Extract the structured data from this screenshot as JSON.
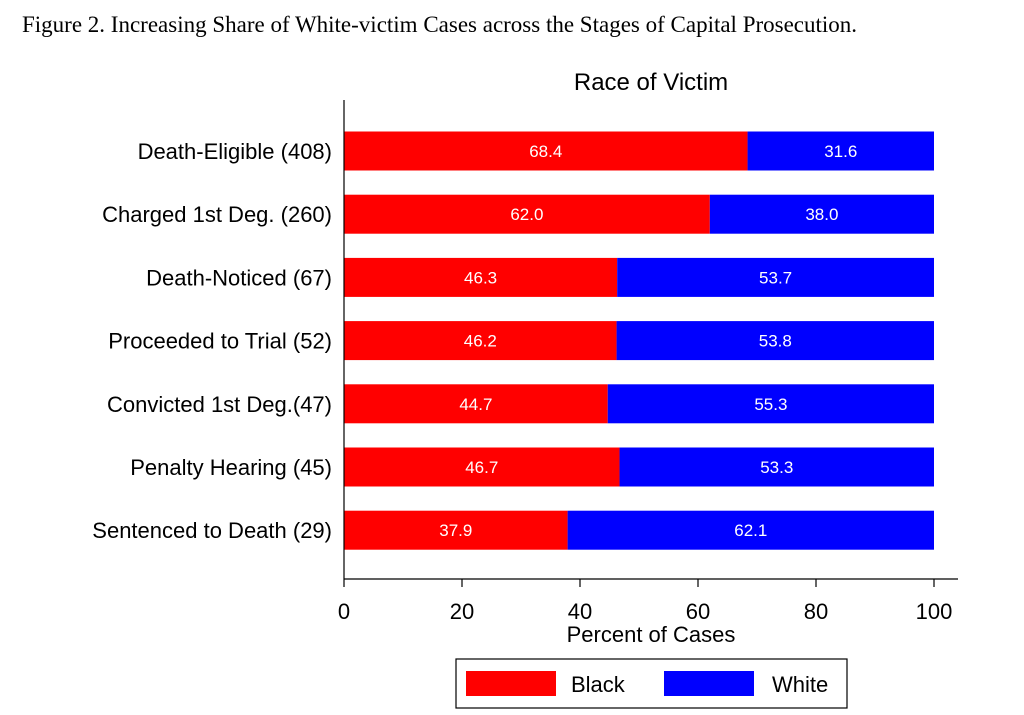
{
  "figure_title": "Figure 2. Increasing Share of White-victim Cases across the Stages of Capital Prosecution.",
  "chart_data": {
    "type": "bar",
    "orientation": "horizontal",
    "stacked": true,
    "title": "Race of Victim",
    "xlabel": "Percent of Cases",
    "ylabel": "",
    "xlim": [
      0,
      100
    ],
    "xticks": [
      0,
      20,
      40,
      60,
      80,
      100
    ],
    "grid": false,
    "legend_position": "bottom",
    "categories": [
      "Death-Eligible (408)",
      "Charged 1st Deg. (260)",
      "Death-Noticed (67)",
      "Proceeded to Trial (52)",
      "Convicted 1st Deg.(47)",
      "Penalty Hearing (45)",
      "Sentenced to Death (29)"
    ],
    "series": [
      {
        "name": "Black",
        "color": "#ff0000",
        "values": [
          68.4,
          62.0,
          46.3,
          46.2,
          44.7,
          46.7,
          37.9
        ],
        "labels": [
          "68.4",
          "62.0",
          "46.3",
          "46.2",
          "44.7",
          "46.7",
          "37.9"
        ]
      },
      {
        "name": "White",
        "color": "#0000ff",
        "values": [
          31.6,
          38.0,
          53.7,
          53.8,
          55.3,
          53.3,
          62.1
        ],
        "labels": [
          "31.6",
          "38.0",
          "53.7",
          "53.8",
          "55.3",
          "53.3",
          "62.1"
        ]
      }
    ]
  }
}
